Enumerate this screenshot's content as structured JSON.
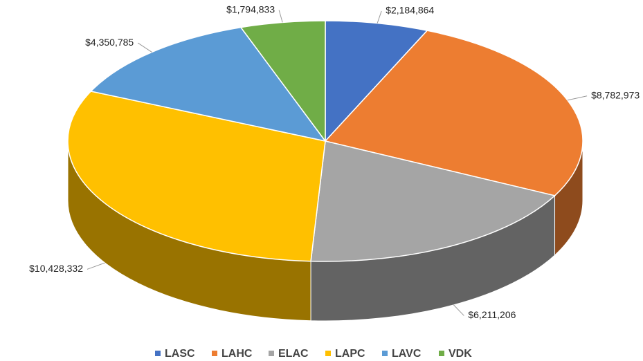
{
  "chart_data": {
    "type": "pie",
    "categories": [
      "LASC",
      "LAHC",
      "ELAC",
      "LAPC",
      "LAVC",
      "VDK"
    ],
    "values": [
      2184864,
      8782973,
      6211206,
      10428332,
      4350785,
      1794833
    ],
    "value_labels": [
      "$2,184,864",
      "$8,782,973",
      "$6,211,206",
      "$10,428,332",
      "$4,350,785",
      "$1,794,833"
    ],
    "colors": [
      "#4472c4",
      "#ed7d31",
      "#a5a5a5",
      "#ffc000",
      "#5b9bd5",
      "#70ad47"
    ],
    "legend": "bottom"
  }
}
